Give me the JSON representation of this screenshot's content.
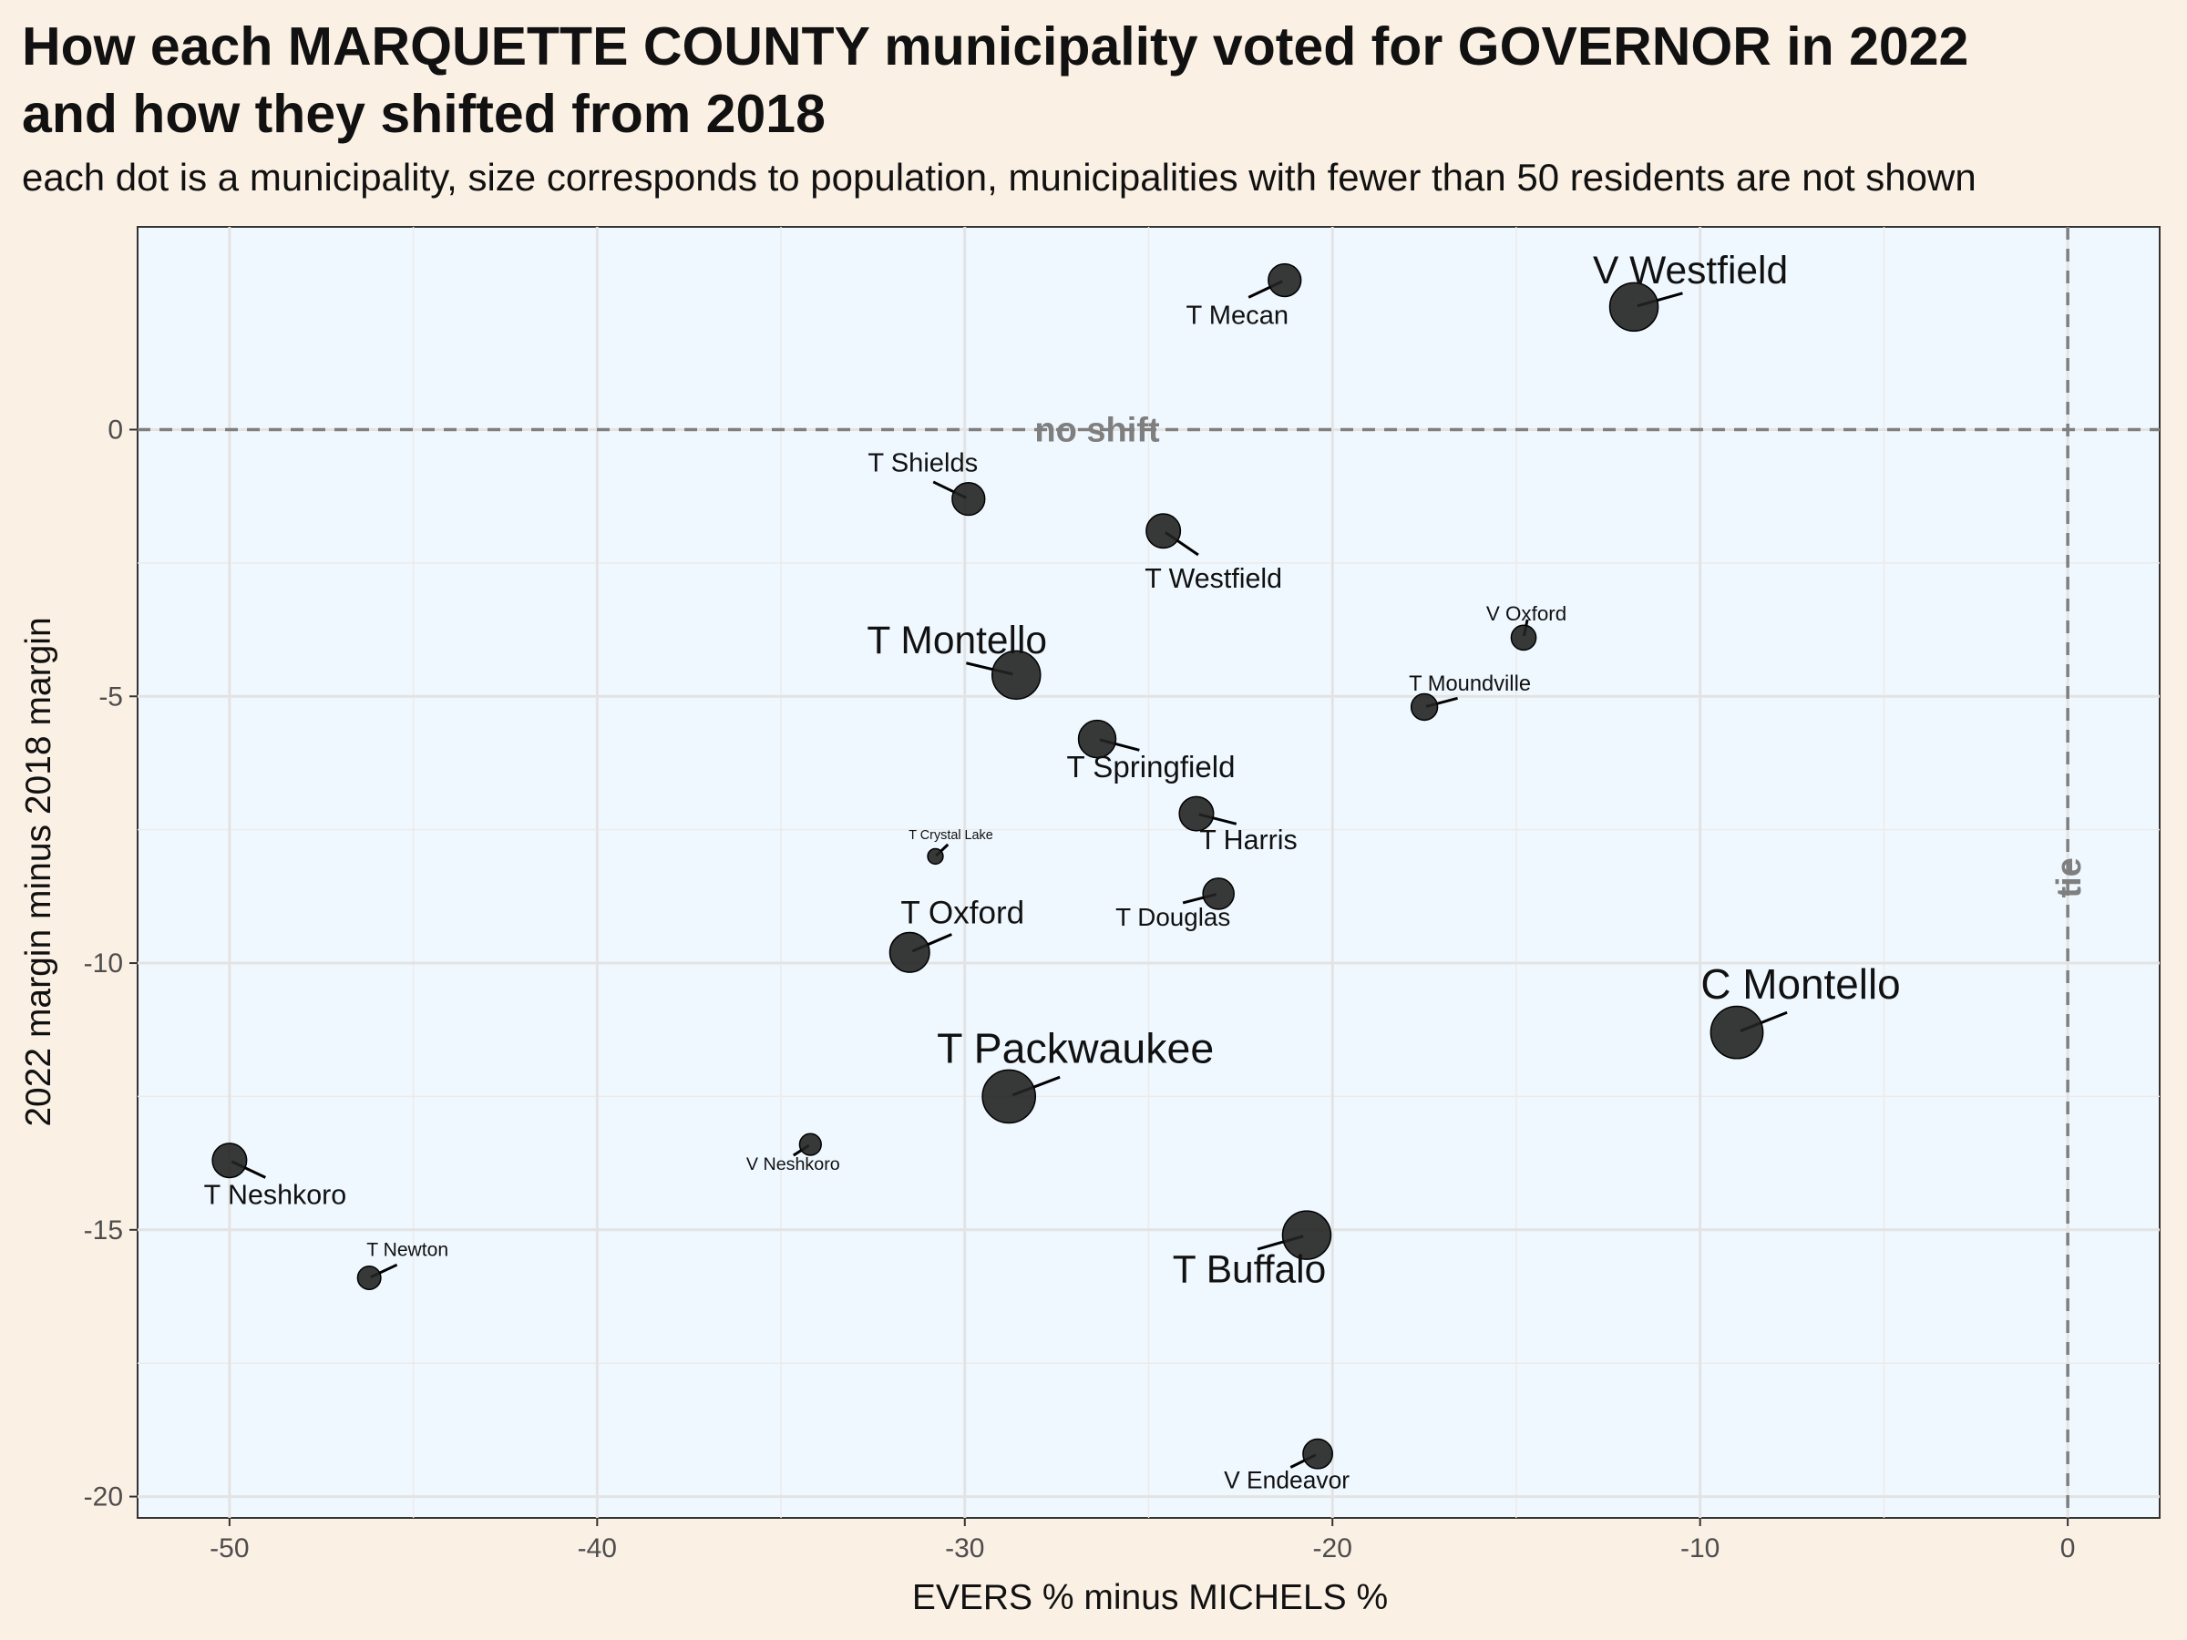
{
  "header": {
    "title_line1": "How each MARQUETTE COUNTY municipality voted for GOVERNOR in 2022",
    "title_line2": "and how they shifted from 2018",
    "subtitle": "each dot is a municipality, size corresponds to population, municipalities with fewer than 50 residents are not shown"
  },
  "chart_data": {
    "type": "scatter",
    "xlabel": "EVERS % minus MICHELS %",
    "ylabel": "2022 margin minus 2018 margin",
    "xlim": [
      -52.5,
      2.5
    ],
    "ylim": [
      -20.4,
      3.8
    ],
    "x_ticks": [
      -50,
      -40,
      -30,
      -20,
      -10,
      0
    ],
    "y_ticks": [
      -20,
      -15,
      -10,
      -5,
      0
    ],
    "reference_lines": [
      {
        "axis": "y",
        "value": 0,
        "label": "no shift"
      },
      {
        "axis": "x",
        "value": 0,
        "label": "tie"
      }
    ],
    "colors": {
      "panel": "#f0f8ff",
      "point": "#222222",
      "reference": "#7f7f7f"
    },
    "points": [
      {
        "name": "V Westfield",
        "x": -11.8,
        "y": 2.3,
        "size": 5
      },
      {
        "name": "T Mecan",
        "x": -21.3,
        "y": 2.8,
        "size": 3
      },
      {
        "name": "T Shields",
        "x": -29.9,
        "y": -1.3,
        "size": 3
      },
      {
        "name": "T Westfield",
        "x": -24.6,
        "y": -1.9,
        "size": 3.2
      },
      {
        "name": "V Oxford",
        "x": -14.8,
        "y": -3.9,
        "size": 2
      },
      {
        "name": "T Montello",
        "x": -28.6,
        "y": -4.6,
        "size": 5
      },
      {
        "name": "T Moundville",
        "x": -17.5,
        "y": -5.2,
        "size": 2.2
      },
      {
        "name": "T Springfield",
        "x": -26.4,
        "y": -5.8,
        "size": 3.6
      },
      {
        "name": "T Harris",
        "x": -23.7,
        "y": -7.2,
        "size": 3.2
      },
      {
        "name": "T Crystal Lake",
        "x": -30.8,
        "y": -8.0,
        "size": 0.8
      },
      {
        "name": "T Douglas",
        "x": -23.1,
        "y": -8.7,
        "size": 2.8
      },
      {
        "name": "T Oxford",
        "x": -31.5,
        "y": -9.8,
        "size": 3.9
      },
      {
        "name": "C Montello",
        "x": -9.0,
        "y": -11.3,
        "size": 5.5
      },
      {
        "name": "T Packwaukee",
        "x": -28.8,
        "y": -12.5,
        "size": 5.6
      },
      {
        "name": "V Neshkoro",
        "x": -34.2,
        "y": -13.4,
        "size": 1.6
      },
      {
        "name": "T Neshkoro",
        "x": -50.0,
        "y": -13.7,
        "size": 3.2
      },
      {
        "name": "T Buffalo",
        "x": -20.7,
        "y": -15.1,
        "size": 5
      },
      {
        "name": "T Newton",
        "x": -46.2,
        "y": -15.9,
        "size": 1.8
      },
      {
        "name": "V Endeavor",
        "x": -20.4,
        "y": -19.2,
        "size": 2.6
      }
    ]
  }
}
